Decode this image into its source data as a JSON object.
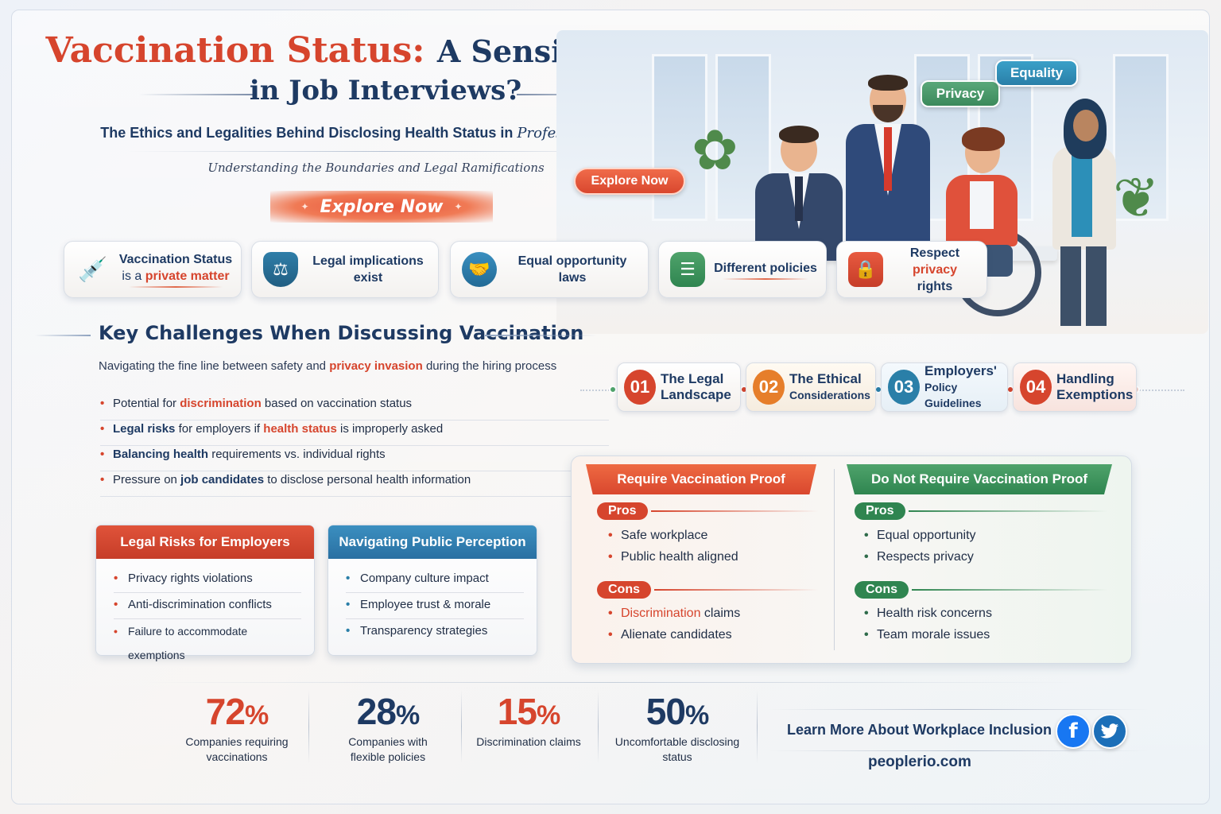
{
  "header": {
    "title_red": "Vaccination Status:",
    "title_navy": "A Sensitive Topic",
    "title_line2": "in Job Interviews?",
    "subtitle_main": "The Ethics and Legalities Behind Disclosing Health Status in",
    "subtitle_italic": "Professional Settings",
    "tagline": "Understanding the Boundaries and Legal Ramifications",
    "explore_label": "Explore Now"
  },
  "hero": {
    "explore_label": "Explore Now",
    "tags": [
      "Privacy",
      "Equality"
    ]
  },
  "features": [
    {
      "line1": "Vaccination Status",
      "line2_prefix": "is a",
      "line2_highlight": "private matter",
      "icon": "vaccine-syringe-icon"
    },
    {
      "line1": "Legal implications",
      "line2": "exist",
      "icon": "scales-shield-icon"
    },
    {
      "line1": "Equal opportunity laws",
      "icon": "handshake-icon"
    },
    {
      "line1": "Different policies",
      "icon": "document-list-icon"
    },
    {
      "line1_prefix": "Respect",
      "line1_highlight": "privacy",
      "line2": "rights",
      "icon": "lock-icon"
    }
  ],
  "challenges": {
    "title": "Key Challenges When Discussing Vaccination",
    "intro_prefix": "Navigating the fine line between safety and",
    "intro_highlight": "privacy invasion",
    "intro_suffix": "during the hiring process",
    "items": [
      {
        "bold": "Potential for",
        "highlight": "discrimination",
        "rest": "based on vaccination status"
      },
      {
        "bold": "Legal risks",
        "pre": "for employers if",
        "highlight": "health status",
        "rest": "is improperly asked"
      },
      {
        "bold": "Balancing health",
        "rest": "requirements vs. individual rights"
      },
      {
        "pre": "Pressure on",
        "bold": "job candidates",
        "rest": "to disclose personal health information"
      }
    ]
  },
  "steps": [
    {
      "num": "01",
      "line1": "The Legal",
      "line2": "Landscape"
    },
    {
      "num": "02",
      "line1": "The Ethical",
      "line2": "Considerations"
    },
    {
      "num": "03",
      "line1": "Employers'",
      "line2": "Policy Guidelines"
    },
    {
      "num": "04",
      "line1": "Handling",
      "line2": "Exemptions"
    }
  ],
  "legal_risks": {
    "title": "Legal Risks for Employers",
    "items": [
      "Privacy rights violations",
      "Anti-discrimination conflicts",
      "Failure to accommodate exemptions"
    ]
  },
  "public_perception": {
    "title": "Navigating Public Perception",
    "items": [
      "Company culture impact",
      "Employee trust & morale",
      "Transparency strategies"
    ]
  },
  "compare": {
    "require": {
      "title": "Require Vaccination Proof",
      "pros_label": "Pros",
      "pros": [
        "Safe workplace",
        "Public health aligned"
      ],
      "cons_label": "Cons",
      "cons_highlight": "Discrimination",
      "cons_first_rest": "claims",
      "cons_second": "Alienate candidates"
    },
    "not_require": {
      "title": "Do Not Require Vaccination Proof",
      "pros_label": "Pros",
      "pros": [
        "Equal opportunity",
        "Respects privacy"
      ],
      "cons_label": "Cons",
      "cons": [
        "Health risk concerns",
        "Team morale issues"
      ]
    }
  },
  "stats": [
    {
      "value": "72",
      "unit": "%",
      "line1": "Companies requiring",
      "line2": "vaccinations",
      "color": "#d6452d"
    },
    {
      "value": "28",
      "unit": "%",
      "line1": "Companies with",
      "line2": "flexible policies",
      "color": "#1e3a63"
    },
    {
      "value": "15",
      "unit": "%",
      "line1": "Discrimination claims",
      "line2": "",
      "color": "#d6452d"
    },
    {
      "value": "50",
      "unit": "%",
      "line1": "Uncomfortable disclosing",
      "line2": "status",
      "color": "#1e3a63"
    }
  ],
  "footer": {
    "learn_more": "Learn More About Workplace Inclusion",
    "website": "peoplerio.com",
    "social": [
      "facebook-icon",
      "twitter-icon"
    ]
  },
  "colors": {
    "accent_red": "#d6452d",
    "navy": "#1e3a63",
    "green": "#2f8550",
    "blue": "#2a7fa8"
  }
}
